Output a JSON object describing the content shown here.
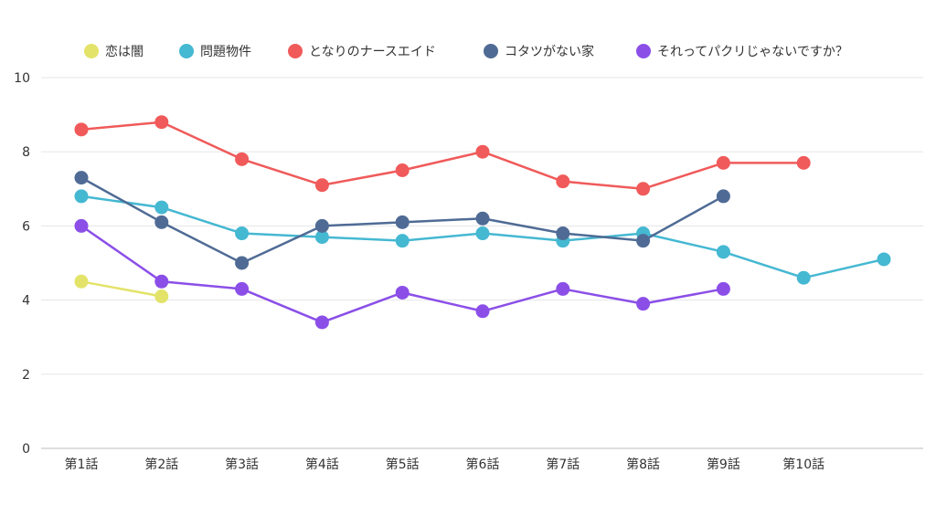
{
  "chart_data": {
    "type": "line",
    "categories": [
      "第1話",
      "第2話",
      "第3話",
      "第4話",
      "第5話",
      "第6話",
      "第7話",
      "第8話",
      "第9話",
      "第10話",
      ""
    ],
    "y_ticks": [
      "0",
      "2",
      "4",
      "6",
      "8",
      "10"
    ],
    "ylim": [
      0,
      10
    ],
    "grid": true,
    "legend_position": "top",
    "series": [
      {
        "name": "恋は闇",
        "color": "#e3e36a",
        "values": [
          4.5,
          4.1,
          null,
          null,
          null,
          null,
          null,
          null,
          null,
          null,
          null
        ]
      },
      {
        "name": "問題物件",
        "color": "#45b8d2",
        "values": [
          6.8,
          6.5,
          5.8,
          5.7,
          5.6,
          5.8,
          5.6,
          5.8,
          5.3,
          4.6,
          5.1
        ]
      },
      {
        "name": "となりのナースエイド",
        "color": "#f05a5a",
        "values": [
          8.6,
          8.8,
          7.8,
          7.1,
          7.5,
          8.0,
          7.2,
          7.0,
          7.7,
          7.7,
          null
        ]
      },
      {
        "name": "コタツがない家",
        "color": "#4f6b95",
        "values": [
          7.3,
          6.1,
          5.0,
          6.0,
          6.1,
          6.2,
          5.8,
          5.6,
          6.8,
          null,
          null
        ]
      },
      {
        "name": "それってパクリじゃないですか？",
        "color": "#8b4fe8",
        "values": [
          6.0,
          4.5,
          4.3,
          3.4,
          4.2,
          3.7,
          4.3,
          3.9,
          4.3,
          null,
          null
        ]
      }
    ]
  }
}
